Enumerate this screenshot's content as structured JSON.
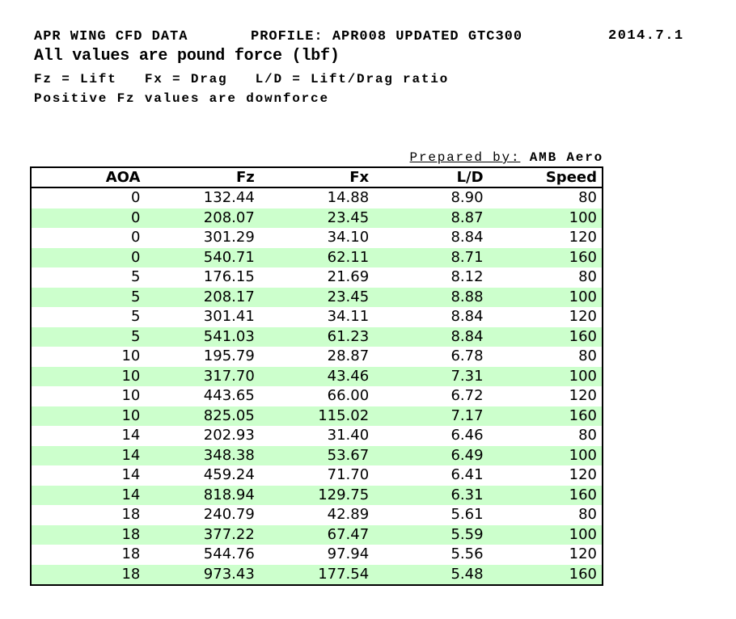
{
  "header": {
    "title": "APR WING CFD DATA",
    "profile": "PROFILE: APR008 UPDATED GTC300",
    "date": "2014.7.1",
    "subtitle": "All values are pound force (lbf)",
    "legend": "Fz = Lift   Fx = Drag   L/D = Lift/Drag ratio",
    "note": "Positive Fz values are downforce"
  },
  "prepared_by": {
    "label": "Prepared by:",
    "value": "AMB Aero"
  },
  "table": {
    "columns": [
      "AOA",
      "Fz",
      "Fx",
      "L/D",
      "Speed"
    ],
    "rows": [
      [
        "0",
        "132.44",
        "14.88",
        "8.90",
        "80"
      ],
      [
        "0",
        "208.07",
        "23.45",
        "8.87",
        "100"
      ],
      [
        "0",
        "301.29",
        "34.10",
        "8.84",
        "120"
      ],
      [
        "0",
        "540.71",
        "62.11",
        "8.71",
        "160"
      ],
      [
        "5",
        "176.15",
        "21.69",
        "8.12",
        "80"
      ],
      [
        "5",
        "208.17",
        "23.45",
        "8.88",
        "100"
      ],
      [
        "5",
        "301.41",
        "34.11",
        "8.84",
        "120"
      ],
      [
        "5",
        "541.03",
        "61.23",
        "8.84",
        "160"
      ],
      [
        "10",
        "195.79",
        "28.87",
        "6.78",
        "80"
      ],
      [
        "10",
        "317.70",
        "43.46",
        "7.31",
        "100"
      ],
      [
        "10",
        "443.65",
        "66.00",
        "6.72",
        "120"
      ],
      [
        "10",
        "825.05",
        "115.02",
        "7.17",
        "160"
      ],
      [
        "14",
        "202.93",
        "31.40",
        "6.46",
        "80"
      ],
      [
        "14",
        "348.38",
        "53.67",
        "6.49",
        "100"
      ],
      [
        "14",
        "459.24",
        "71.70",
        "6.41",
        "120"
      ],
      [
        "14",
        "818.94",
        "129.75",
        "6.31",
        "160"
      ],
      [
        "18",
        "240.79",
        "42.89",
        "5.61",
        "80"
      ],
      [
        "18",
        "377.22",
        "67.47",
        "5.59",
        "100"
      ],
      [
        "18",
        "544.76",
        "97.94",
        "5.56",
        "120"
      ],
      [
        "18",
        "973.43",
        "177.54",
        "5.48",
        "160"
      ]
    ]
  },
  "colors": {
    "stripe_green": "#ccffcc",
    "border": "#000000",
    "background": "#ffffff"
  }
}
